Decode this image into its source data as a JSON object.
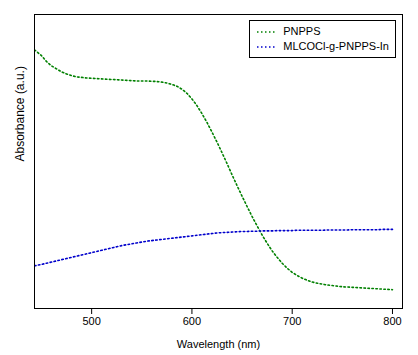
{
  "chart_data": {
    "type": "line",
    "xlabel": "Wavelength (nm)",
    "ylabel": "Absorbance (a.u.)",
    "xlim": [
      443,
      810
    ],
    "ylim": [
      0.05,
      1.05
    ],
    "xticks": [
      500,
      600,
      700,
      800
    ],
    "tick_labels": "x",
    "grid": false,
    "legend": "upper right",
    "x": [
      443,
      450,
      455,
      460,
      465,
      470,
      475,
      480,
      485,
      490,
      495,
      500,
      505,
      510,
      515,
      520,
      525,
      530,
      535,
      540,
      545,
      550,
      555,
      560,
      565,
      570,
      575,
      580,
      585,
      590,
      595,
      600,
      605,
      610,
      615,
      620,
      625,
      630,
      635,
      640,
      645,
      650,
      655,
      660,
      665,
      670,
      675,
      680,
      685,
      690,
      695,
      700,
      705,
      710,
      715,
      720,
      725,
      730,
      735,
      740,
      745,
      750,
      755,
      760,
      765,
      770,
      775,
      780,
      785,
      790,
      795,
      800
    ],
    "series": [
      {
        "name": "PNPPS",
        "color": "#008000",
        "line_style": "dotted",
        "values": [
          0.93,
          0.91,
          0.89,
          0.875,
          0.865,
          0.855,
          0.848,
          0.842,
          0.838,
          0.836,
          0.834,
          0.833,
          0.832,
          0.831,
          0.83,
          0.829,
          0.828,
          0.827,
          0.826,
          0.825,
          0.824,
          0.824,
          0.824,
          0.823,
          0.822,
          0.82,
          0.817,
          0.812,
          0.806,
          0.796,
          0.782,
          0.763,
          0.74,
          0.713,
          0.683,
          0.65,
          0.616,
          0.58,
          0.543,
          0.505,
          0.468,
          0.432,
          0.397,
          0.363,
          0.331,
          0.3,
          0.272,
          0.246,
          0.224,
          0.204,
          0.187,
          0.173,
          0.162,
          0.153,
          0.146,
          0.14,
          0.136,
          0.133,
          0.13,
          0.128,
          0.126,
          0.124,
          0.123,
          0.122,
          0.121,
          0.12,
          0.119,
          0.118,
          0.117,
          0.116,
          0.115,
          0.114
        ]
      },
      {
        "name": "MLCOCl-g-PNPPS-In",
        "color": "#0000cc",
        "line_style": "dotted",
        "values": [
          0.195,
          0.2,
          0.204,
          0.208,
          0.212,
          0.216,
          0.22,
          0.224,
          0.228,
          0.232,
          0.236,
          0.24,
          0.244,
          0.248,
          0.252,
          0.256,
          0.26,
          0.264,
          0.267,
          0.27,
          0.273,
          0.276,
          0.279,
          0.281,
          0.283,
          0.285,
          0.287,
          0.289,
          0.291,
          0.293,
          0.295,
          0.297,
          0.299,
          0.301,
          0.303,
          0.305,
          0.307,
          0.308,
          0.309,
          0.31,
          0.311,
          0.312,
          0.312,
          0.313,
          0.313,
          0.314,
          0.314,
          0.314,
          0.315,
          0.315,
          0.315,
          0.315,
          0.316,
          0.316,
          0.316,
          0.316,
          0.316,
          0.316,
          0.317,
          0.317,
          0.317,
          0.317,
          0.317,
          0.318,
          0.318,
          0.318,
          0.318,
          0.318,
          0.318,
          0.319,
          0.319,
          0.319
        ]
      }
    ]
  }
}
